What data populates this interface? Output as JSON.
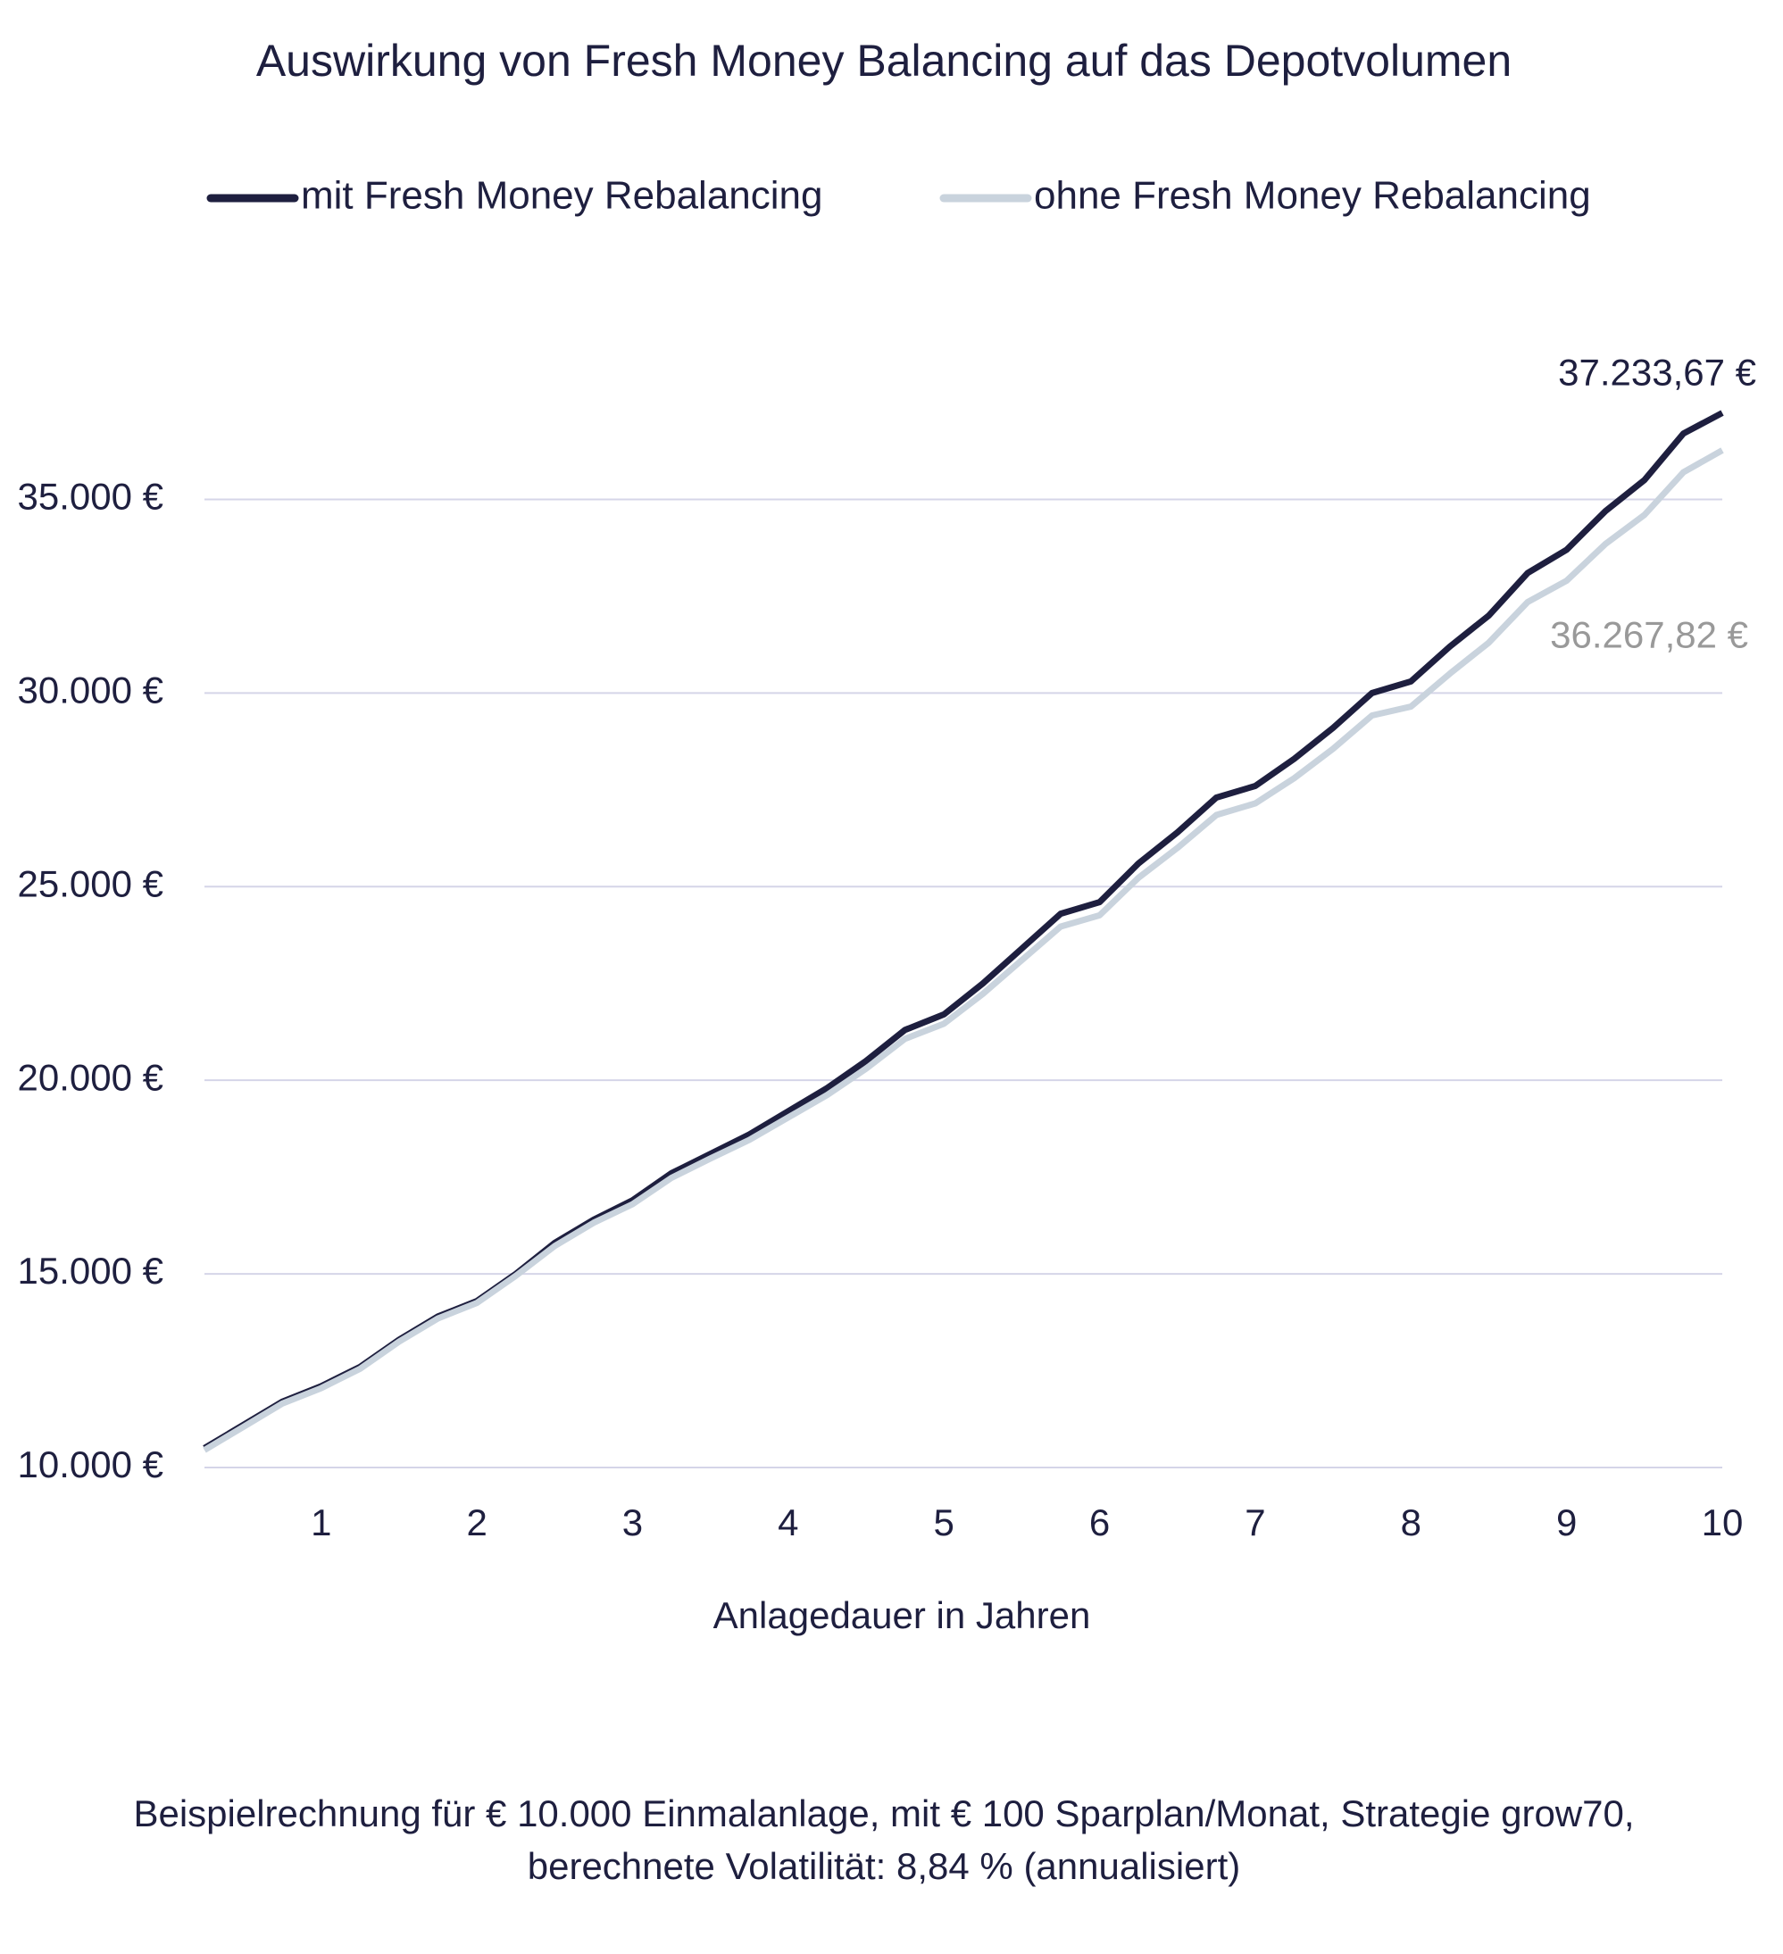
{
  "chart_data": {
    "type": "line",
    "title": "Auswirkung von Fresh Money Balancing auf das Depotvolumen",
    "x_label": "Anlagedauer in Jahren",
    "note": [
      "Beispielrechnung für € 10.000 Einmalanlage, mit € 100 Sparplan/Monat, Strategie grow70,",
      "berechnete Volatilität: 8,84 % (annualisiert)"
    ],
    "x": [
      0.25,
      0.5,
      0.75,
      1,
      1.25,
      1.5,
      1.75,
      2,
      2.25,
      2.5,
      2.75,
      3,
      3.25,
      3.5,
      3.75,
      4,
      4.25,
      4.5,
      4.75,
      5,
      5.25,
      5.5,
      5.75,
      6,
      6.25,
      6.5,
      6.75,
      7,
      7.25,
      7.5,
      7.75,
      8,
      8.25,
      8.5,
      8.75,
      9,
      9.25,
      9.5,
      9.75,
      10
    ],
    "series": [
      {
        "name": "mit Fresh Money Rebalancing",
        "color": "#1e1f3f",
        "end_label": "37.233,67 €",
        "end_label_color": "#1e1f3f",
        "values": [
          10500,
          11100,
          11700,
          12100,
          12600,
          13300,
          13900,
          14300,
          15000,
          15800,
          16400,
          16900,
          17600,
          18100,
          18600,
          19200,
          19800,
          20500,
          21300,
          21700,
          22500,
          23400,
          24300,
          24600,
          25600,
          26400,
          27300,
          27600,
          28300,
          29100,
          30000,
          30300,
          31200,
          32000,
          33100,
          33700,
          34700,
          35500,
          36700,
          37233.67
        ]
      },
      {
        "name": "ohne Fresh Money Rebalancing",
        "color": "#c9d3dd",
        "end_label": "36.267,82 €",
        "end_label_color": "#999999",
        "values": [
          10450,
          11050,
          11650,
          12050,
          12550,
          13250,
          13850,
          14250,
          14950,
          15720,
          16320,
          16800,
          17480,
          17980,
          18460,
          19040,
          19620,
          20300,
          21070,
          21460,
          22230,
          23100,
          23970,
          24260,
          25230,
          26000,
          26850,
          27150,
          27800,
          28560,
          29420,
          29650,
          30500,
          31300,
          32350,
          32900,
          33850,
          34600,
          35700,
          36267.82
        ]
      }
    ],
    "xlim": [
      0.25,
      10
    ],
    "xticks": [
      1,
      2,
      3,
      4,
      5,
      6,
      7,
      8,
      9,
      10
    ],
    "ylim": [
      10000,
      37500
    ],
    "yticks": [
      {
        "value": 10000,
        "label": "10.000 €"
      },
      {
        "value": 15000,
        "label": "15.000 €"
      },
      {
        "value": 20000,
        "label": "20.000 €"
      },
      {
        "value": 25000,
        "label": "25.000 €"
      },
      {
        "value": 30000,
        "label": "30.000 €"
      },
      {
        "value": 35000,
        "label": "35.000 €"
      }
    ],
    "grid": true
  }
}
